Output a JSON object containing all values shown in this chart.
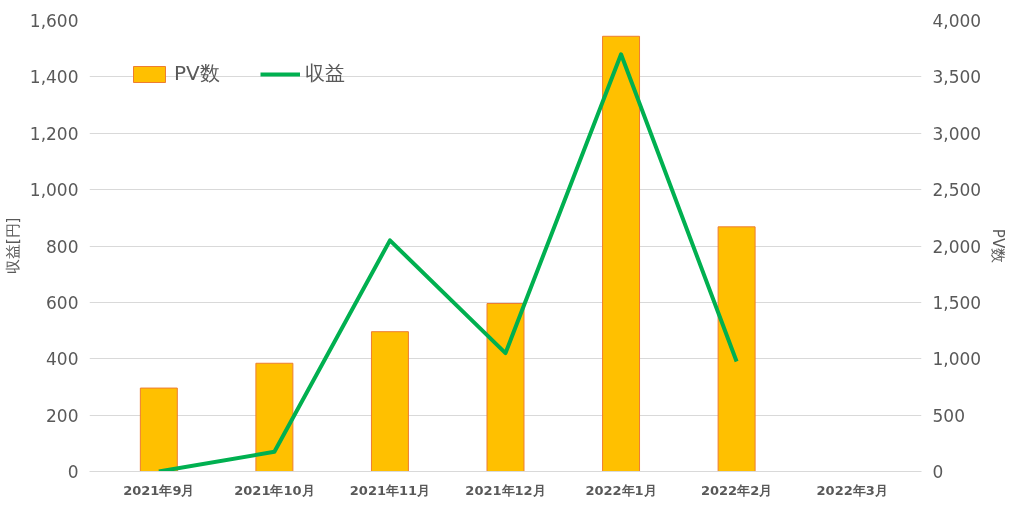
{
  "chart_data": {
    "type": "bar",
    "categories": [
      "2021年9月",
      "2021年10月",
      "2021年11月",
      "2021年12月",
      "2022年1月",
      "2022年2月",
      "2022年3月"
    ],
    "series": [
      {
        "name": "PV数",
        "axis": "y2",
        "color": "#ffc000",
        "values": [
          740,
          960,
          1240,
          1490,
          3860,
          2170,
          null
        ]
      },
      {
        "name": "収益",
        "type": "line",
        "axis": "y",
        "color": "#00b050",
        "values": [
          0,
          70,
          820,
          420,
          1480,
          390,
          null
        ]
      }
    ],
    "ylabel": "収益[円]",
    "y2label": "PV数",
    "ylim": [
      0,
      1600
    ],
    "yticks": [
      {
        "value": 0,
        "label": "0"
      },
      {
        "value": 200,
        "label": "200"
      },
      {
        "value": 400,
        "label": "400"
      },
      {
        "value": 600,
        "label": "600"
      },
      {
        "value": 800,
        "label": "800"
      },
      {
        "value": 1000,
        "label": "1,000"
      },
      {
        "value": 1200,
        "label": "1,200"
      },
      {
        "value": 1400,
        "label": "1,400"
      },
      {
        "value": 1600,
        "label": "1,600"
      }
    ],
    "y2lim": [
      0,
      4000
    ],
    "y2ticks": [
      {
        "value": 0,
        "label": "0"
      },
      {
        "value": 500,
        "label": "500"
      },
      {
        "value": 1000,
        "label": "1,000"
      },
      {
        "value": 1500,
        "label": "1,500"
      },
      {
        "value": 2000,
        "label": "2,000"
      },
      {
        "value": 2500,
        "label": "2,500"
      },
      {
        "value": 3000,
        "label": "3,000"
      },
      {
        "value": 3500,
        "label": "3,500"
      },
      {
        "value": 4000,
        "label": "4,000"
      }
    ],
    "grid": "y",
    "legend": "top left",
    "line_style": "solid",
    "marker": "none"
  }
}
